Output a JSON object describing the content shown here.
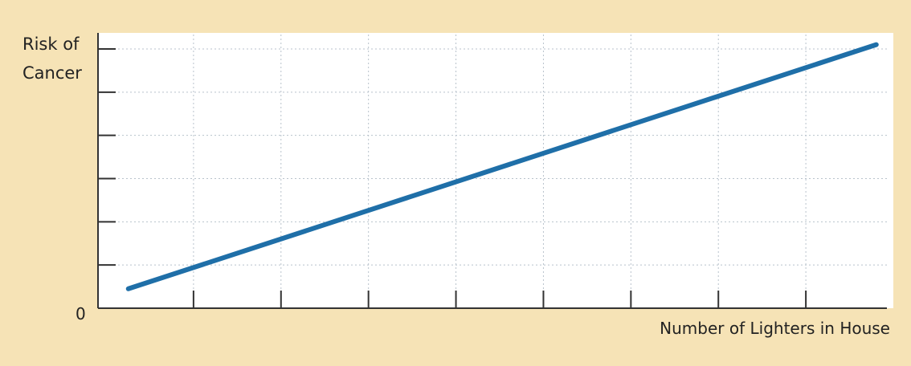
{
  "colors": {
    "background": "#f6e3b6",
    "plot_background": "#ffffff",
    "line": "#1f6fa8",
    "axis": "#333333",
    "grid": "#b8c2cc",
    "text": "#222222"
  },
  "chart_data": {
    "type": "line",
    "title": "",
    "ylabel_line1": "Risk of",
    "ylabel_line2": "Cancer",
    "xlabel": "Number of Lighters in House",
    "zero_label": "0",
    "xlim": [
      0,
      9
    ],
    "ylim": [
      0,
      6
    ],
    "x_ticks": [
      1,
      2,
      3,
      4,
      5,
      6,
      7,
      8,
      9
    ],
    "y_ticks": [
      1,
      2,
      3,
      4,
      5,
      6
    ],
    "grid": true,
    "legend": "none",
    "series": [
      {
        "values": [
          {
            "x": 0.2,
            "y": 0.45
          },
          {
            "x": 8.75,
            "y": 6.1
          }
        ]
      }
    ]
  }
}
